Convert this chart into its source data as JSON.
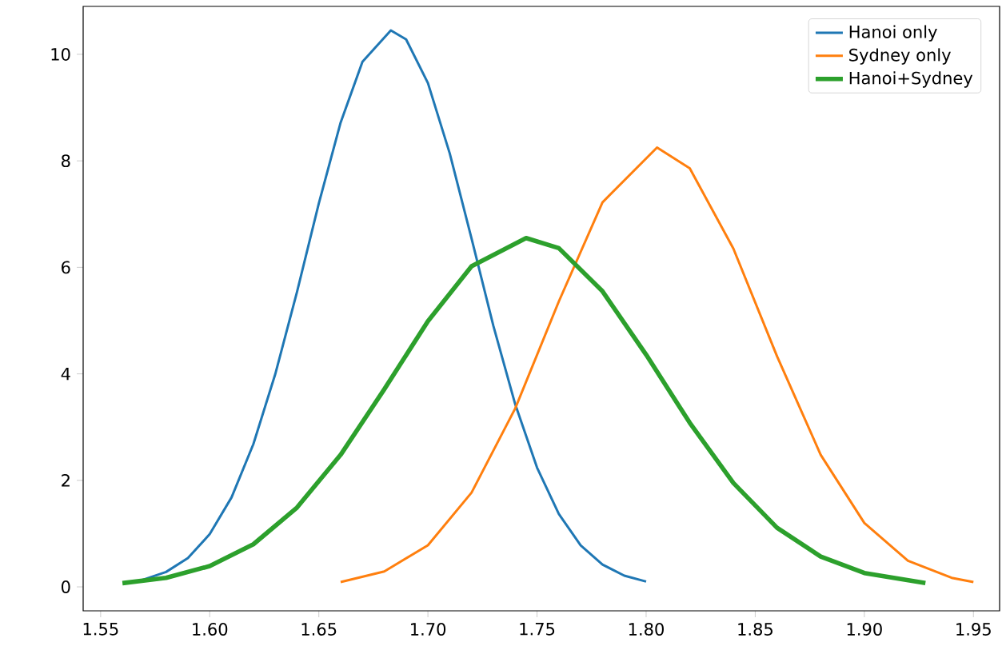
{
  "chart_data": {
    "type": "line",
    "xlim": [
      1.542,
      1.962
    ],
    "ylim": [
      -0.45,
      10.9
    ],
    "xticks": [
      {
        "value": 1.55,
        "label": "1.55"
      },
      {
        "value": 1.6,
        "label": "1.60"
      },
      {
        "value": 1.65,
        "label": "1.65"
      },
      {
        "value": 1.7,
        "label": "1.70"
      },
      {
        "value": 1.75,
        "label": "1.75"
      },
      {
        "value": 1.8,
        "label": "1.80"
      },
      {
        "value": 1.85,
        "label": "1.85"
      },
      {
        "value": 1.9,
        "label": "1.90"
      },
      {
        "value": 1.95,
        "label": "1.95"
      }
    ],
    "yticks": [
      0,
      2,
      4,
      6,
      8,
      10
    ],
    "legend": "top right",
    "grid": false,
    "marker": "none",
    "line_style": "solid",
    "series": [
      {
        "name": "Hanoi only",
        "color": "#1f77b4",
        "x": [
          1.567,
          1.58,
          1.59,
          1.6,
          1.61,
          1.62,
          1.63,
          1.64,
          1.65,
          1.66,
          1.67,
          1.683,
          1.69,
          1.7,
          1.71,
          1.72,
          1.73,
          1.74,
          1.75,
          1.76,
          1.77,
          1.78,
          1.79,
          1.8
        ],
        "values": [
          0.1,
          0.28,
          0.54,
          0.99,
          1.68,
          2.68,
          3.99,
          5.54,
          7.2,
          8.72,
          9.86,
          10.45,
          10.28,
          9.46,
          8.14,
          6.54,
          4.9,
          3.43,
          2.24,
          1.37,
          0.78,
          0.42,
          0.21,
          0.1
        ]
      },
      {
        "name": "Sydney only",
        "color": "#ff7f0e",
        "x": [
          1.66,
          1.68,
          1.7,
          1.72,
          1.74,
          1.76,
          1.78,
          1.805,
          1.82,
          1.84,
          1.86,
          1.88,
          1.9,
          1.92,
          1.94,
          1.95
        ],
        "values": [
          0.09,
          0.29,
          0.78,
          1.77,
          3.35,
          5.36,
          7.22,
          8.25,
          7.86,
          6.35,
          4.33,
          2.48,
          1.2,
          0.49,
          0.17,
          0.09
        ]
      },
      {
        "name": "Hanoi+Sydney",
        "color": "#2ca02c",
        "x": [
          1.56,
          1.58,
          1.6,
          1.62,
          1.64,
          1.66,
          1.68,
          1.7,
          1.72,
          1.745,
          1.76,
          1.78,
          1.8,
          1.82,
          1.84,
          1.86,
          1.88,
          1.9,
          1.928
        ],
        "values": [
          0.07,
          0.17,
          0.39,
          0.8,
          1.49,
          2.48,
          3.71,
          4.99,
          6.02,
          6.55,
          6.36,
          5.55,
          4.36,
          3.08,
          1.95,
          1.11,
          0.57,
          0.26,
          0.07
        ]
      }
    ]
  }
}
